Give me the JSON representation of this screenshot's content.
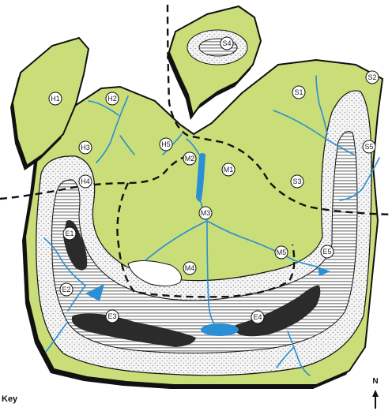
{
  "map": {
    "key_label": "Key",
    "north_label": "N",
    "colors": {
      "land": "#c9dd78",
      "outline": "#111111",
      "sand": "#f4f4f4",
      "stripes": "#9a9a9a",
      "dark_deposit": "#2b2b2b",
      "water": "#2a8fd4",
      "pale_patch": "#ffffff"
    },
    "markers": {
      "H1": "H1",
      "H2": "H2",
      "H3": "H3",
      "H4": "H4",
      "H5": "H5",
      "M1": "M1",
      "M2": "M2",
      "M3": "M3",
      "M4": "M4",
      "M5": "M5",
      "S1": "S1",
      "S2": "S2",
      "S3": "S3",
      "S4": "S4",
      "S5": "S5",
      "E1": "E1",
      "E2": "E2",
      "E3": "E3",
      "E4": "E4",
      "E5": "E5"
    }
  }
}
